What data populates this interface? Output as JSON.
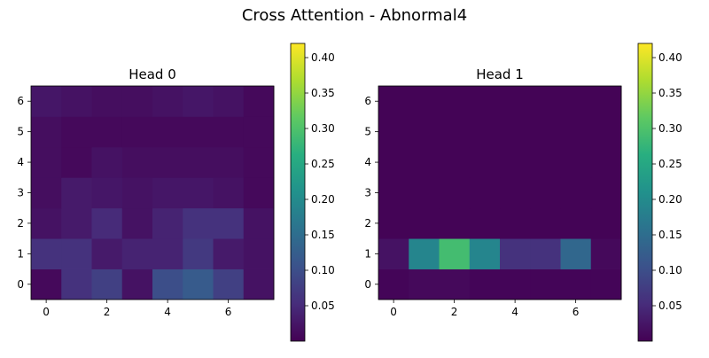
{
  "title": "Cross Attention - Abnormal4",
  "colorbar_ticks": [
    "0.05",
    "0.10",
    "0.15",
    "0.20",
    "0.25",
    "0.30",
    "0.35",
    "0.40"
  ],
  "chart_data": [
    {
      "type": "heatmap",
      "title": "Head 0",
      "x": [
        0,
        1,
        2,
        3,
        4,
        5,
        6,
        7
      ],
      "y": [
        0,
        1,
        2,
        3,
        4,
        5,
        6
      ],
      "xticks": [
        "0",
        "2",
        "4",
        "6"
      ],
      "yticks": [
        "0",
        "1",
        "2",
        "3",
        "4",
        "5",
        "6"
      ],
      "colormap": "viridis",
      "vmin": 0.0,
      "vmax": 0.42,
      "values": [
        [
          0.01,
          0.06,
          0.08,
          0.02,
          0.1,
          0.12,
          0.08,
          0.02
        ],
        [
          0.06,
          0.06,
          0.03,
          0.04,
          0.04,
          0.07,
          0.03,
          0.02
        ],
        [
          0.02,
          0.03,
          0.05,
          0.02,
          0.04,
          0.06,
          0.06,
          0.02
        ],
        [
          0.015,
          0.03,
          0.025,
          0.02,
          0.025,
          0.025,
          0.02,
          0.01
        ],
        [
          0.015,
          0.01,
          0.02,
          0.015,
          0.015,
          0.015,
          0.015,
          0.01
        ],
        [
          0.015,
          0.01,
          0.01,
          0.01,
          0.01,
          0.01,
          0.01,
          0.01
        ],
        [
          0.025,
          0.02,
          0.015,
          0.015,
          0.02,
          0.025,
          0.02,
          0.01
        ]
      ]
    },
    {
      "type": "heatmap",
      "title": "Head 1",
      "x": [
        0,
        1,
        2,
        3,
        4,
        5,
        6,
        7
      ],
      "y": [
        0,
        1,
        2,
        3,
        4,
        5,
        6
      ],
      "xticks": [
        "0",
        "2",
        "4",
        "6"
      ],
      "yticks": [
        "0",
        "1",
        "2",
        "3",
        "4",
        "5",
        "6"
      ],
      "colormap": "viridis",
      "vmin": 0.0,
      "vmax": 0.42,
      "values": [
        [
          0.005,
          0.01,
          0.01,
          0.005,
          0.005,
          0.005,
          0.005,
          0.005
        ],
        [
          0.02,
          0.19,
          0.29,
          0.19,
          0.06,
          0.06,
          0.14,
          0.01
        ],
        [
          0.003,
          0.003,
          0.003,
          0.003,
          0.003,
          0.003,
          0.003,
          0.003
        ],
        [
          0.003,
          0.003,
          0.003,
          0.003,
          0.003,
          0.003,
          0.003,
          0.003
        ],
        [
          0.003,
          0.003,
          0.003,
          0.003,
          0.003,
          0.003,
          0.003,
          0.003
        ],
        [
          0.003,
          0.003,
          0.003,
          0.003,
          0.003,
          0.003,
          0.003,
          0.003
        ],
        [
          0.003,
          0.003,
          0.003,
          0.003,
          0.003,
          0.003,
          0.003,
          0.003
        ]
      ]
    }
  ]
}
